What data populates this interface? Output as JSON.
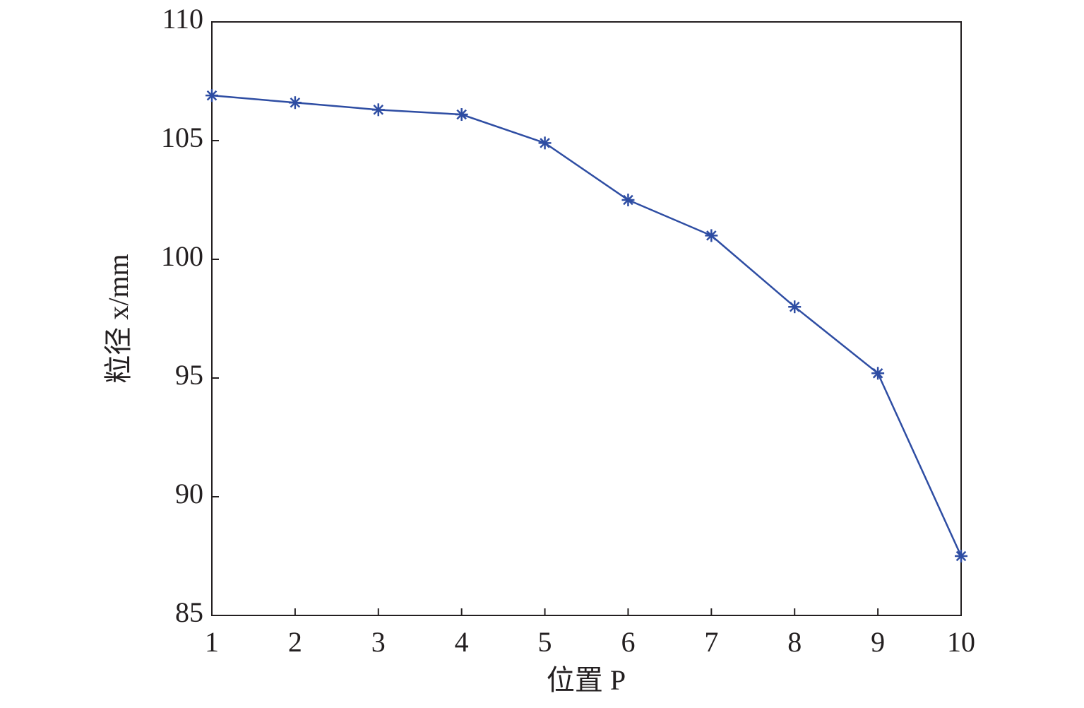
{
  "chart_data": {
    "type": "line",
    "xlabel": "位置 P",
    "ylabel": "粒径 x/mm",
    "x": [
      1,
      2,
      3,
      4,
      5,
      6,
      7,
      8,
      9,
      10
    ],
    "values": [
      106.9,
      106.6,
      106.3,
      106.1,
      104.9,
      102.5,
      101.0,
      98.0,
      95.2,
      87.5
    ],
    "color": "#2e4da3",
    "marker": "asterisk",
    "xlim": [
      1,
      10
    ],
    "xticks": [
      1,
      2,
      3,
      4,
      5,
      6,
      7,
      8,
      9,
      10
    ],
    "ylim": [
      85,
      110
    ],
    "yticks": [
      85,
      90,
      95,
      100,
      105,
      110
    ],
    "grid": false
  }
}
